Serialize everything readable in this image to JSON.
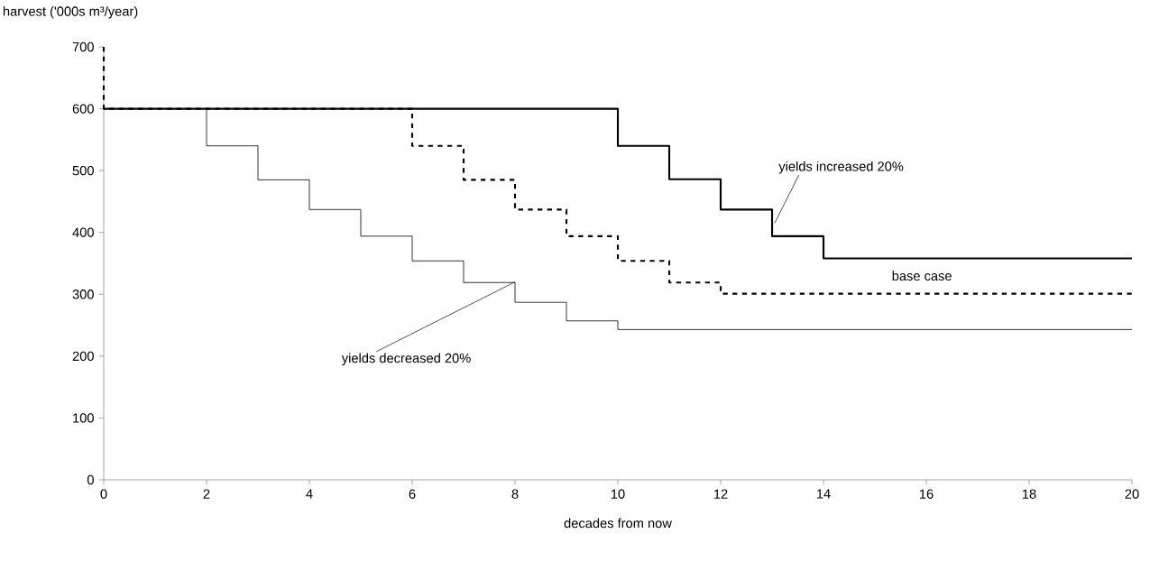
{
  "chart_data": {
    "type": "step",
    "xlabel": "decades from now",
    "ylabel": "harvest ('000s m³/year)",
    "xlim": [
      0,
      20
    ],
    "xticks": [
      0,
      2,
      4,
      6,
      8,
      10,
      12,
      14,
      16,
      18,
      20
    ],
    "ylim": [
      0,
      700
    ],
    "yticks": [
      0,
      100,
      200,
      300,
      400,
      500,
      600,
      700
    ],
    "grid": false,
    "marker": "none",
    "series": [
      {
        "name": "yields increased 20%",
        "color": "#000000",
        "line_style": "solid",
        "x": [
          0,
          10,
          11,
          12,
          13,
          14,
          20
        ],
        "values": [
          600,
          540,
          486,
          437,
          394,
          358,
          358
        ]
      },
      {
        "name": "base case",
        "color": "#000000",
        "line_style": "dashed",
        "x": [
          0,
          0,
          6,
          7,
          8,
          9,
          10,
          11,
          12,
          20
        ],
        "values": [
          700,
          600,
          540,
          485,
          437,
          394,
          354,
          319,
          301,
          301
        ]
      },
      {
        "name": "yields decreased 20%",
        "color": "#000000",
        "line_style": "solid",
        "x": [
          0,
          2,
          3,
          4,
          5,
          6,
          7,
          8,
          9,
          10,
          20
        ],
        "values": [
          600,
          540,
          485,
          437,
          394,
          354,
          319,
          287,
          257,
          243,
          243
        ]
      }
    ]
  }
}
